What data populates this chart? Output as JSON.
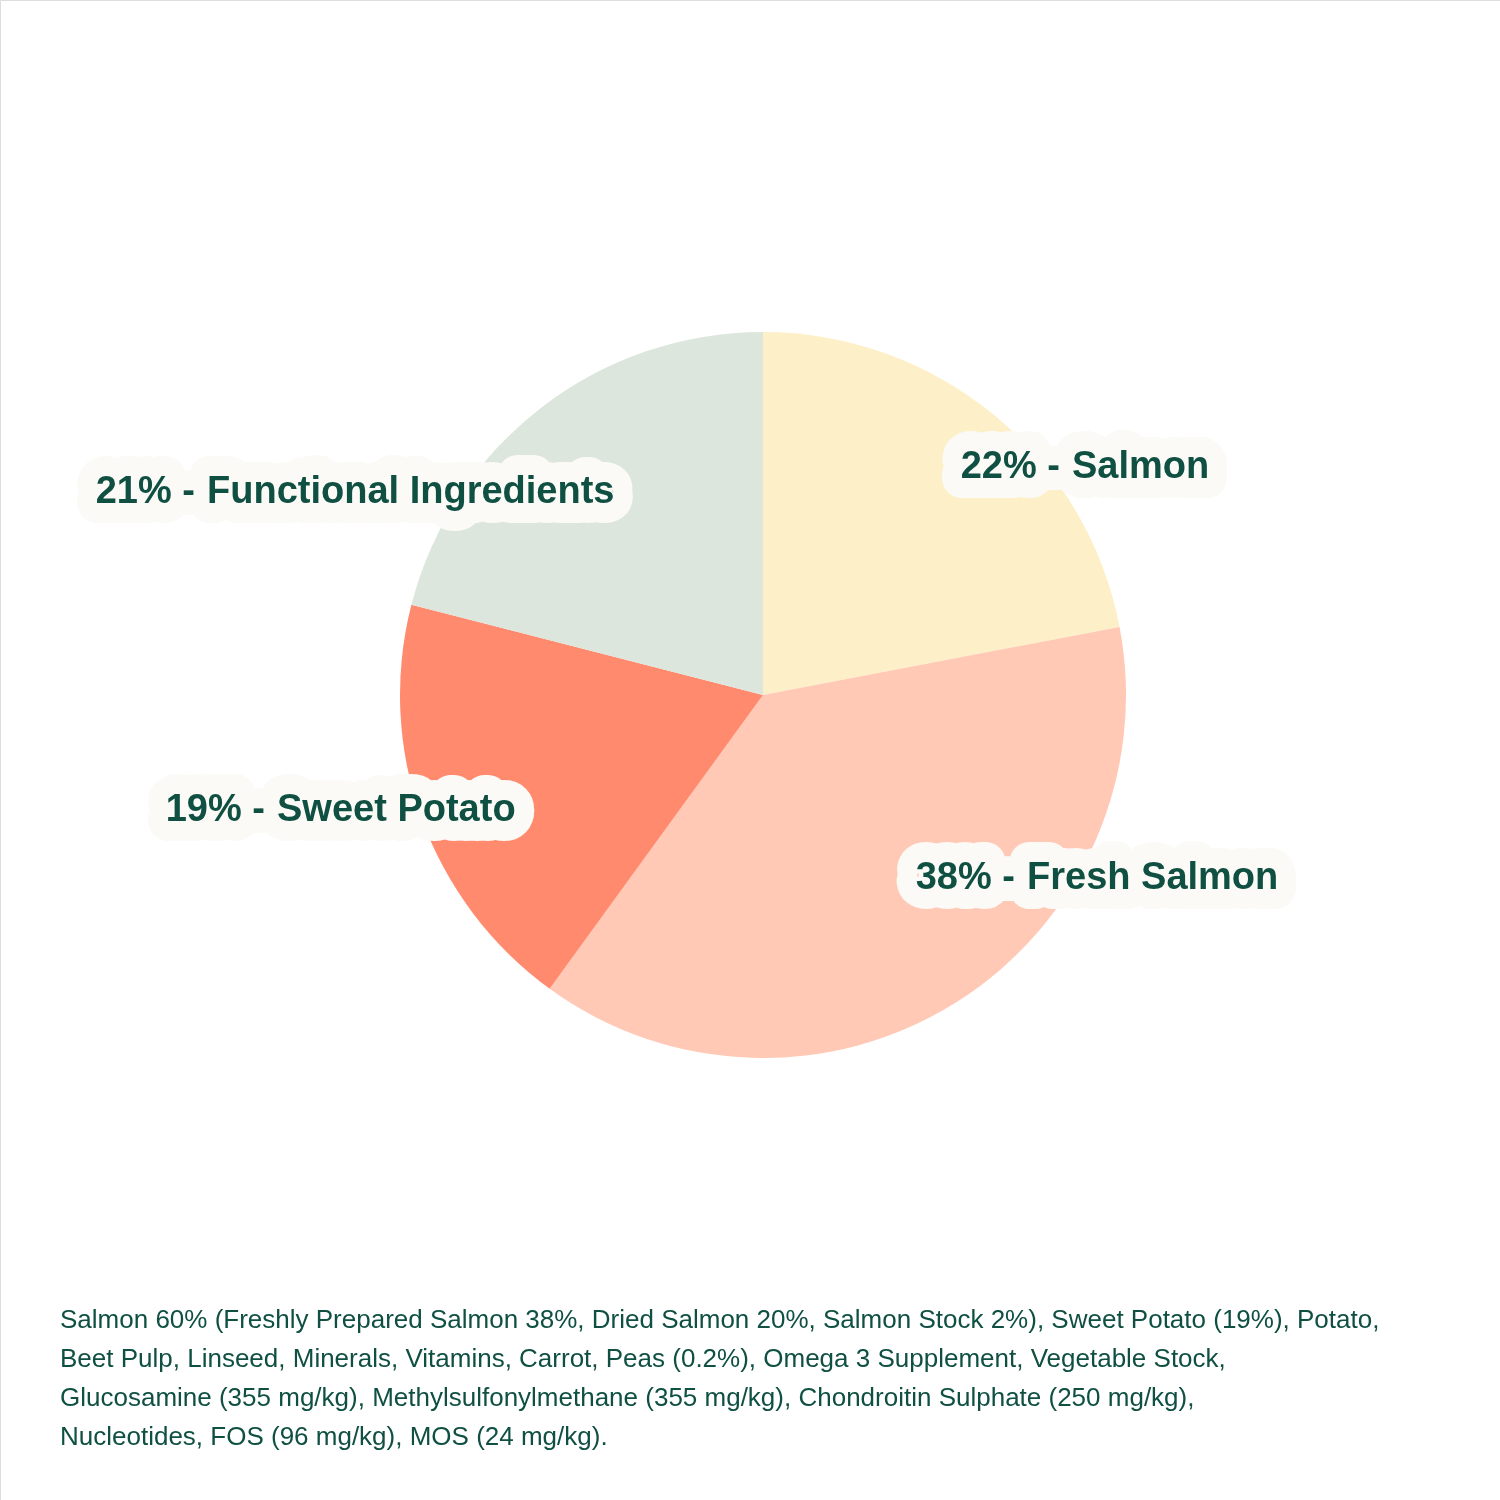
{
  "chart_data": {
    "type": "pie",
    "categories": [
      "Salmon",
      "Fresh Salmon",
      "Sweet Potato",
      "Functional Ingredients"
    ],
    "values": [
      22,
      38,
      19,
      21
    ],
    "colors": [
      "#fdf0c8",
      "#ffc9b5",
      "#ff8a6e",
      "#dce6dc"
    ],
    "value_labels": [
      "22% -",
      "38% -",
      "19% -",
      "21% -"
    ],
    "annotations": [
      "Salmon 60% (Freshly Prepared Salmon 38%, Dried Salmon 20%, Salmon Stock 2%), Sweet Potato (19%), Potato, Beet Pulp, Linseed, Minerals, Vitamins, Carrot, Peas (0.2%), Omega 3 Supplement, Vegetable Stock, Glucosamine (355 mg/kg), Methylsulfonylmethane (355 mg/kg), Chondroitin Sulphate (250 mg/kg), Nucleotides, FOS (96 mg/kg), MOS (24 mg/kg)."
    ]
  }
}
